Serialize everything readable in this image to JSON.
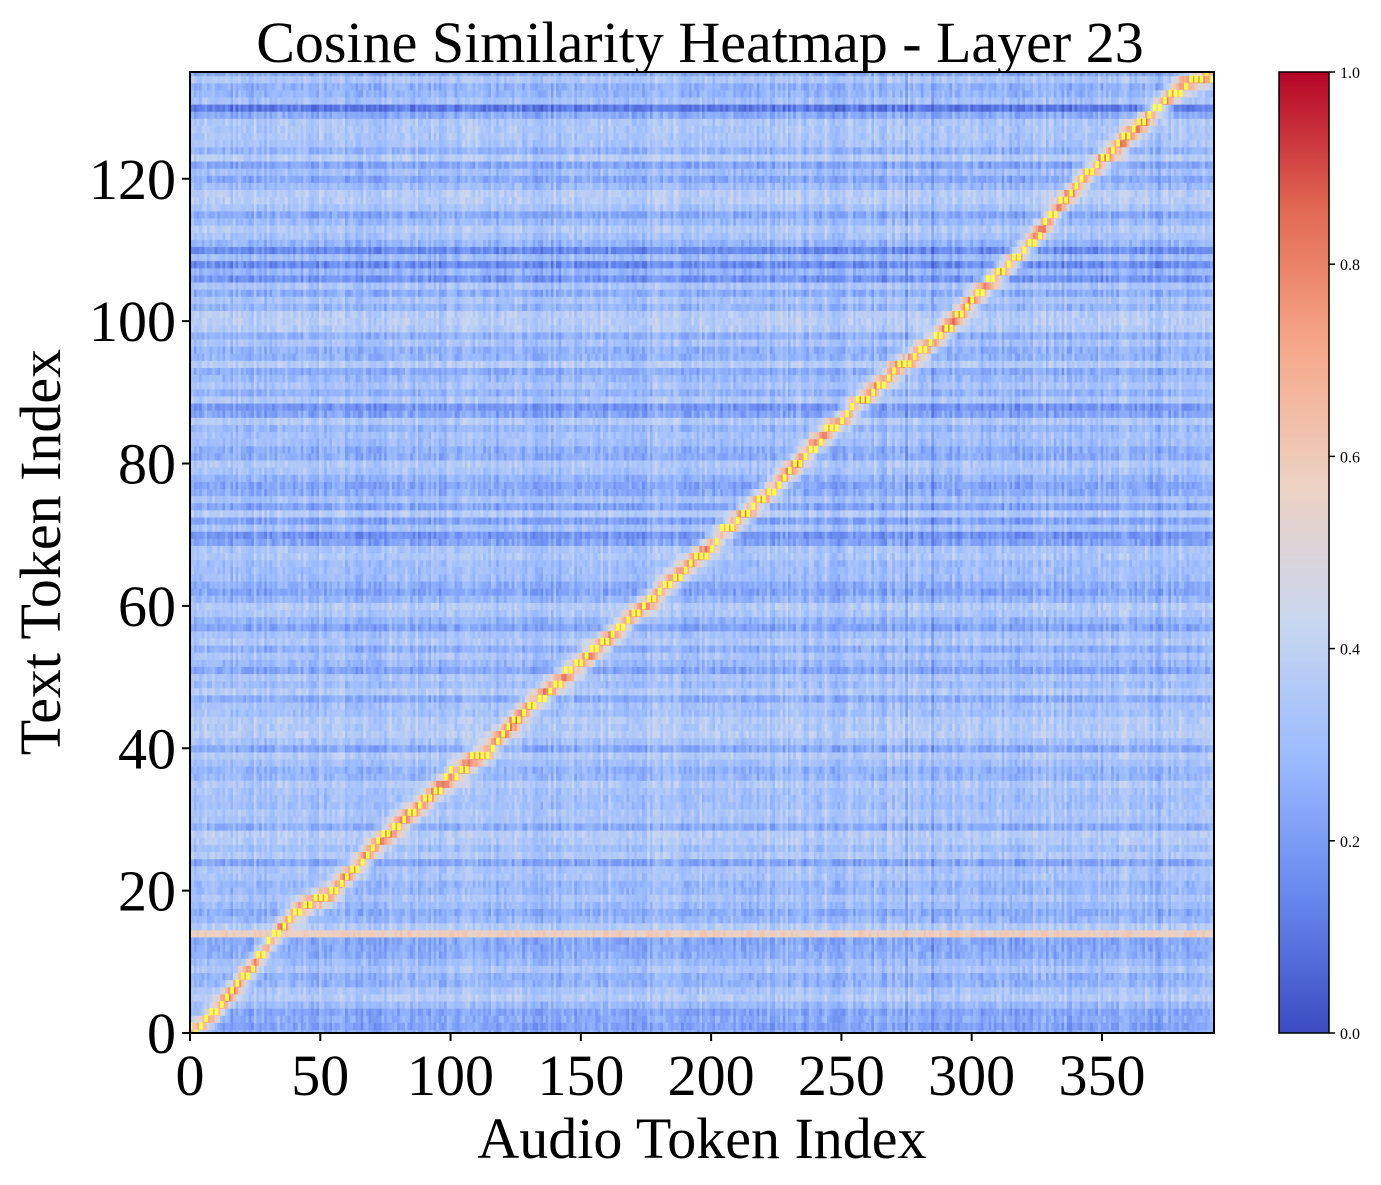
{
  "chart_data": {
    "type": "heatmap",
    "title": "Cosine Similarity Heatmap - Layer 23",
    "xlabel": "Audio Token Index",
    "ylabel": "Text Token Index",
    "x_range": [
      0,
      393
    ],
    "y_range": [
      0,
      135
    ],
    "x_ticks": [
      0,
      50,
      100,
      150,
      200,
      250,
      300,
      350
    ],
    "y_ticks": [
      0,
      20,
      40,
      60,
      80,
      100,
      120
    ],
    "colormap": "coolwarm",
    "color_range": [
      0.0,
      1.0
    ],
    "colorbar_ticks": [
      "0.0",
      "0.2",
      "0.4",
      "0.6",
      "0.8",
      "1.0"
    ],
    "highlight_color": "#ffff40",
    "colormap_stops": [
      "#3b4cc0",
      "#6788ee",
      "#9abbff",
      "#c9d7f0",
      "#edd1c2",
      "#f7a889",
      "#e26952",
      "#b40426"
    ],
    "background_level": 0.3,
    "alignment_path": [
      [
        0,
        0
      ],
      [
        10,
        3
      ],
      [
        25,
        10
      ],
      [
        40,
        17
      ],
      [
        55,
        20
      ],
      [
        70,
        26
      ],
      [
        85,
        31
      ],
      [
        100,
        36
      ],
      [
        115,
        40
      ],
      [
        130,
        46
      ],
      [
        150,
        52
      ],
      [
        165,
        57
      ],
      [
        180,
        62
      ],
      [
        195,
        67
      ],
      [
        210,
        72
      ],
      [
        225,
        77
      ],
      [
        240,
        83
      ],
      [
        255,
        88
      ],
      [
        270,
        93
      ],
      [
        285,
        97
      ],
      [
        300,
        103
      ],
      [
        320,
        110
      ],
      [
        340,
        119
      ],
      [
        360,
        126
      ],
      [
        380,
        133
      ],
      [
        393,
        135
      ]
    ],
    "bright_rows": [
      {
        "row": 14,
        "value": 0.62
      }
    ],
    "dark_rows": [
      70,
      76,
      88,
      106,
      108,
      110,
      130
    ],
    "dark_columns": [
      275,
      285,
      372
    ]
  }
}
